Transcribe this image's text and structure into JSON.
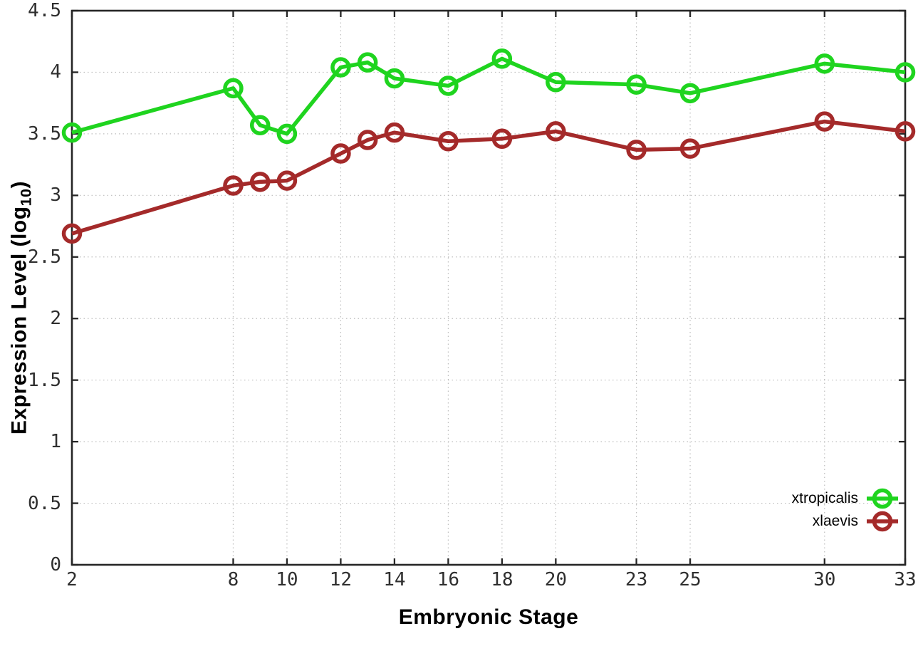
{
  "figure": {
    "y_axis_title_parts": {
      "main": "Expression Level (log",
      "sub": "10",
      "end": ")"
    }
  },
  "chart_data": {
    "type": "line",
    "title": "",
    "xlabel": "Embryonic Stage",
    "ylabel": "Expression Level (log10)",
    "xlim": [
      2,
      33
    ],
    "ylim": [
      0,
      4.5
    ],
    "grid": true,
    "legend_position": "bottom-right",
    "x": [
      2,
      8,
      9,
      10,
      12,
      13,
      14,
      16,
      18,
      20,
      23,
      25,
      30,
      33
    ],
    "xtick_values": [
      2,
      8,
      10,
      12,
      14,
      16,
      18,
      20,
      23,
      25,
      30,
      33
    ],
    "xtick_labels": [
      "2",
      "8",
      "10",
      "12",
      "14",
      "16",
      "18",
      "20",
      "23",
      "25",
      "30",
      "33"
    ],
    "ytick_values": [
      0,
      0.5,
      1,
      1.5,
      2,
      2.5,
      3,
      3.5,
      4,
      4.5
    ],
    "ytick_labels": [
      "0",
      "0.5",
      "1",
      "1.5",
      "2",
      "2.5",
      "3",
      "3.5",
      "4",
      "4.5"
    ],
    "series": [
      {
        "name": "xtropicalis",
        "color": "#1fd41f",
        "values": [
          3.51,
          3.87,
          3.57,
          3.5,
          4.04,
          4.08,
          3.95,
          3.89,
          4.11,
          3.92,
          3.9,
          3.83,
          4.07,
          4.0
        ]
      },
      {
        "name": "xlaevis",
        "color": "#a42a2a",
        "values": [
          2.69,
          3.08,
          3.11,
          3.12,
          3.34,
          3.45,
          3.51,
          3.44,
          3.46,
          3.52,
          3.37,
          3.38,
          3.6,
          3.52
        ]
      }
    ]
  }
}
